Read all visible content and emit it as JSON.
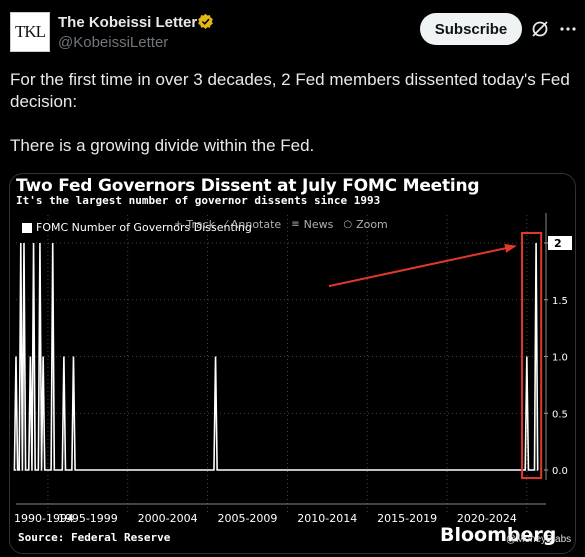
{
  "post": {
    "author_name": "The Kobeissi Letter",
    "handle": "@KobeissiLetter",
    "avatar_text": "TKL",
    "subscribe_label": "Subscribe",
    "paragraph_1": "For the first time in over 3 decades, 2 Fed members dissented today's Fed decision:",
    "paragraph_2": "There is a growing divide within the Fed."
  },
  "media": {
    "title": "Two Fed Governors Dissent at July FOMC Meeting",
    "subtitle": "It's the largest number of governor dissents since 1993",
    "toolbar": {
      "track": "Track",
      "annotate": "Annotate",
      "news": "News",
      "zoom": "Zoom"
    },
    "source": "Source: Federal Reserve",
    "brand": "Bloomberg",
    "watermark": "@MoneyBlabs"
  },
  "colors": {
    "background": "#000000",
    "line": "#ffffff",
    "highlight": "#e0392b",
    "verified": "#e2b719"
  },
  "icons": [
    "verified-badge-icon",
    "grok-icon",
    "more-icon",
    "track-icon",
    "annotate-icon",
    "news-icon",
    "zoom-icon"
  ],
  "chart_data": {
    "type": "line",
    "series": [
      {
        "name": "FOMC Number of Governors Dissenting",
        "x": [
          1993.0,
          1993.3,
          1993.5,
          1993.9,
          1994.1,
          1994.5,
          1994.7,
          1995.3,
          1996.0,
          1996.6,
          2005.5,
          2025.0,
          2025.58
        ],
        "values": [
          1,
          2,
          2,
          1,
          2,
          2,
          1,
          2,
          1,
          1,
          1,
          1,
          2
        ]
      }
    ],
    "xlabel": "",
    "ylabel": "",
    "xlim": [
      1993,
      2025.7
    ],
    "ylim": [
      0,
      2
    ],
    "yticks": [
      "0.0",
      "0.5",
      "1.0",
      "1.5",
      "2"
    ],
    "xticks": [
      "1990-1994",
      "1995-1999",
      "2000-2004",
      "2005-2009",
      "2010-2014",
      "2015-2019",
      "2020-2024"
    ],
    "last_value_label": "2",
    "grid": true,
    "legend": "top-left"
  }
}
